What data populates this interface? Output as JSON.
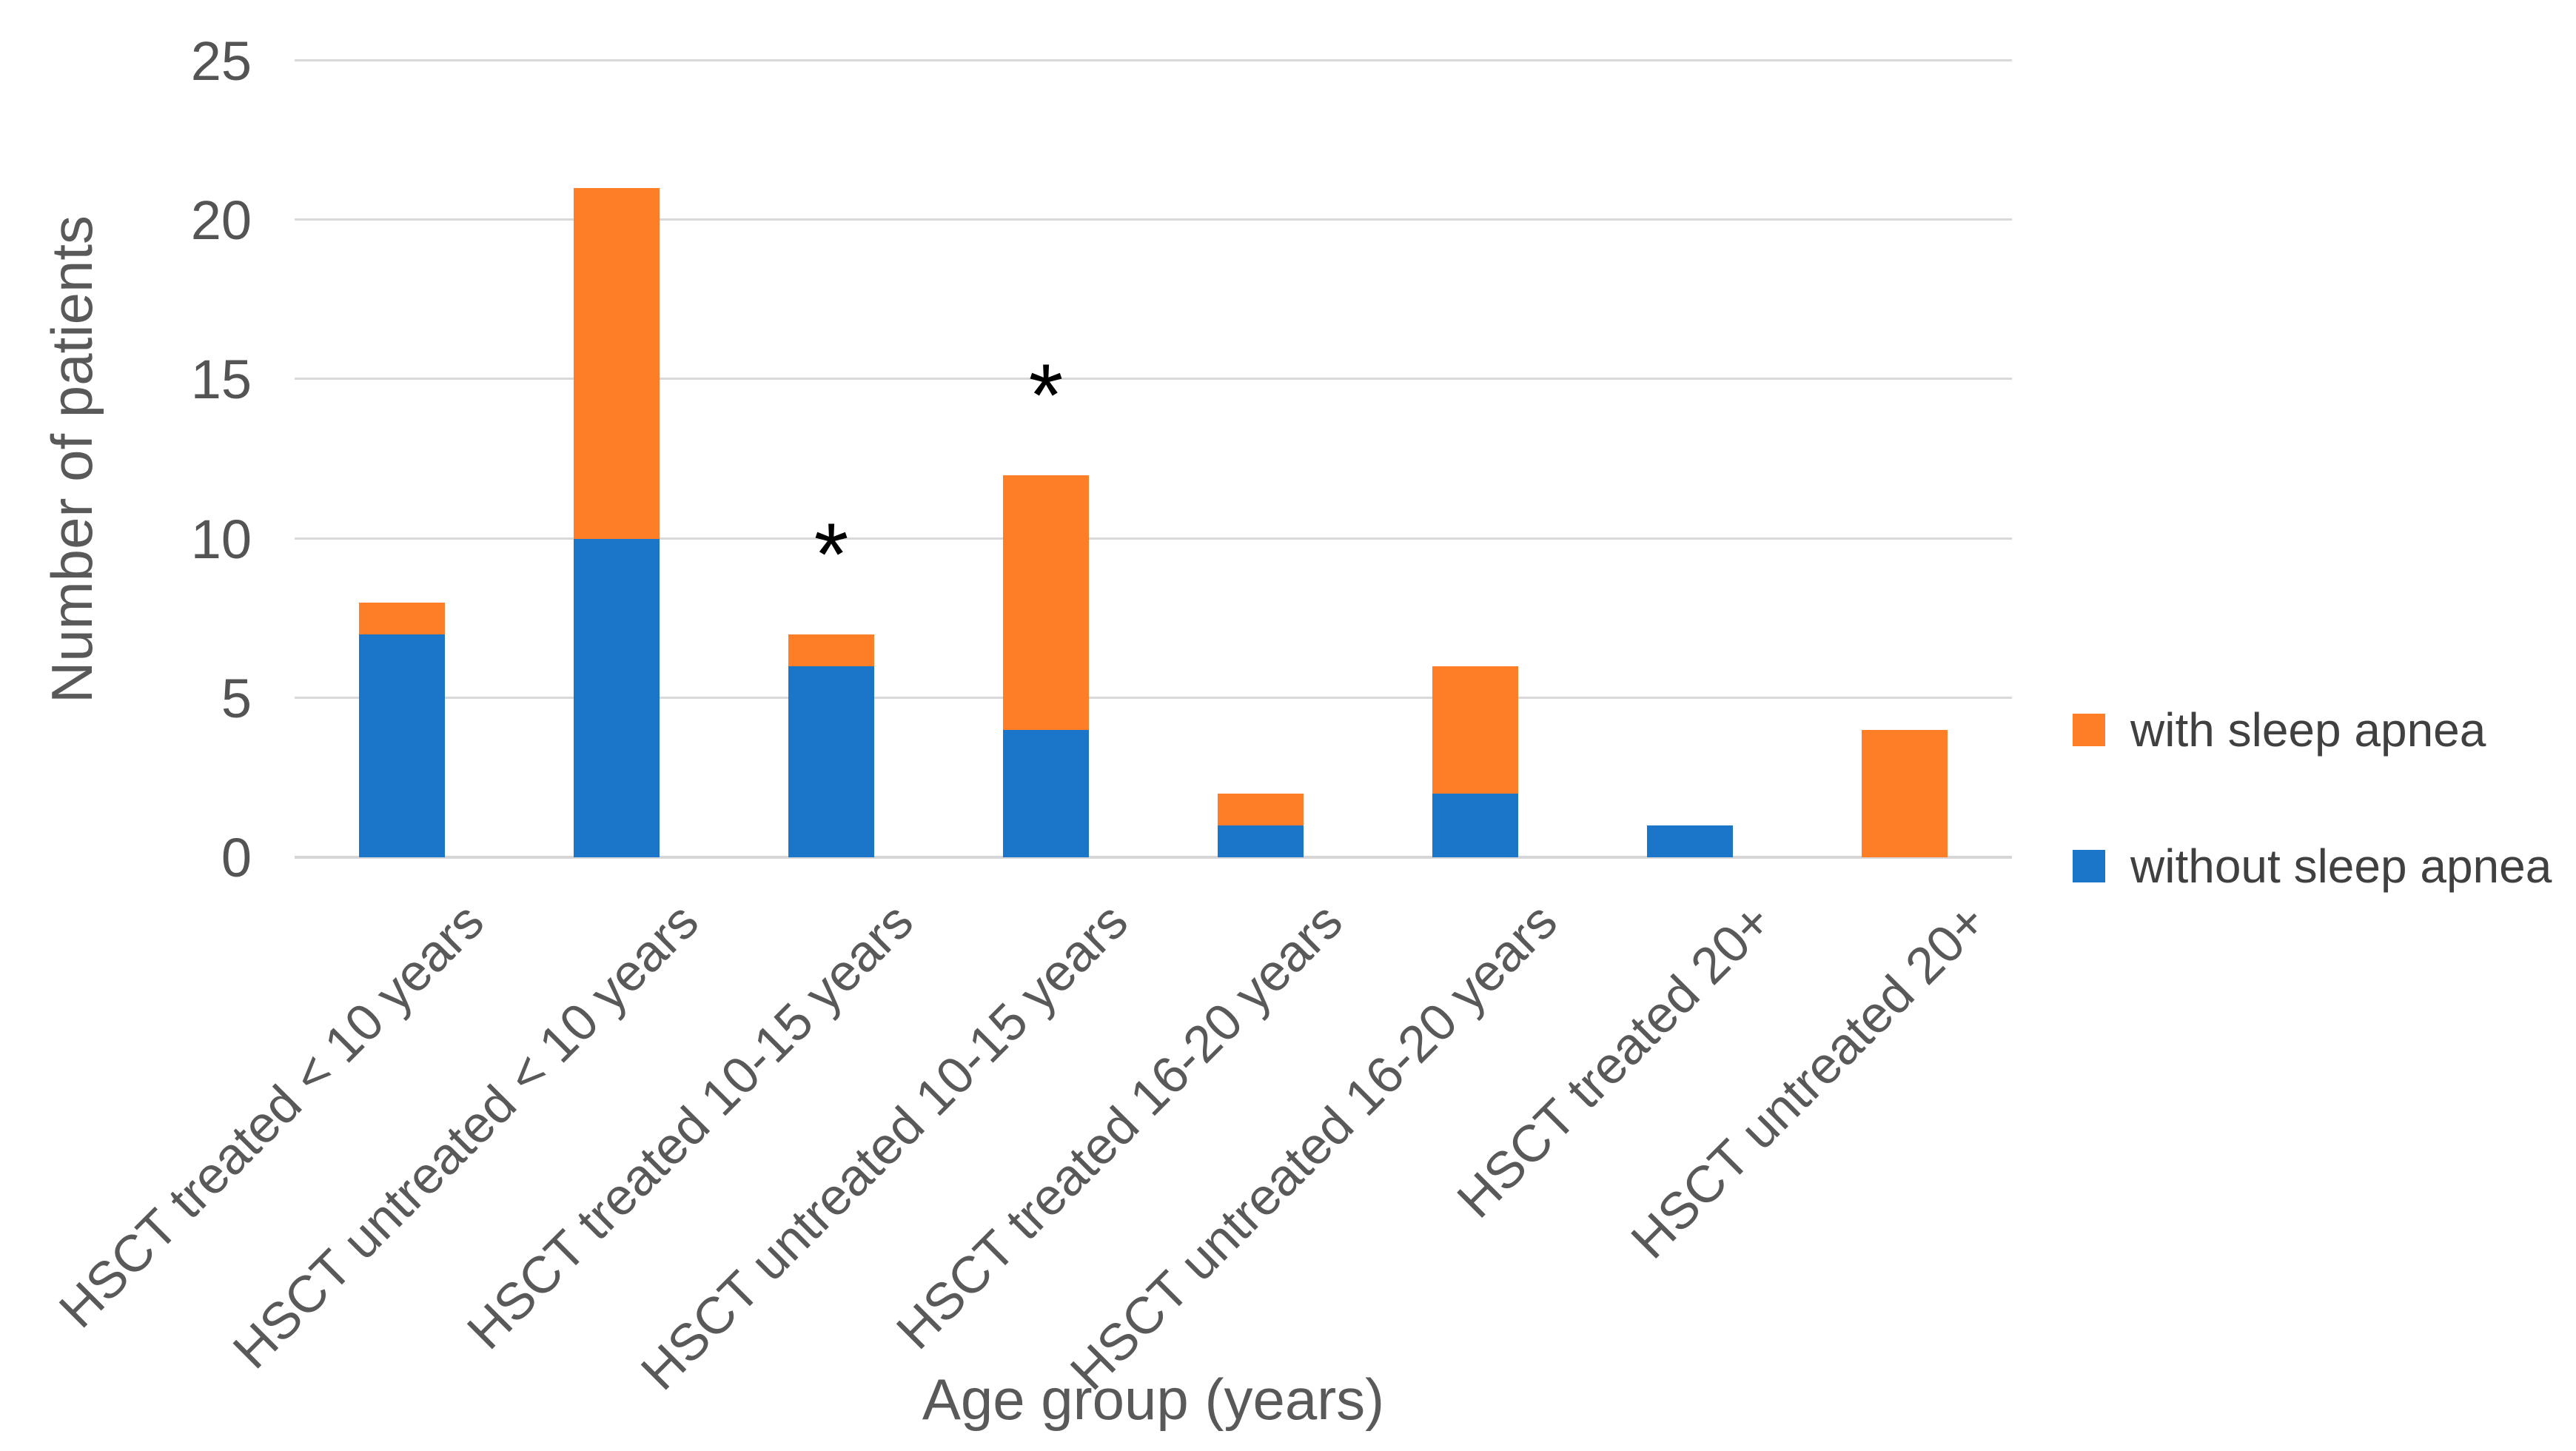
{
  "chart_data": {
    "type": "bar",
    "stacked": true,
    "orientation": "vertical",
    "title": "",
    "xlabel": "Age group (years)",
    "ylabel": "Number of patients",
    "ylim": [
      0,
      25
    ],
    "yticks": [
      0,
      5,
      10,
      15,
      20,
      25
    ],
    "grid": true,
    "categories": [
      "HSCT treated < 10 years",
      "HSCT untreated < 10 years",
      "HSCT treated 10-15 years",
      "HSCT untreated 10-15 years",
      "HSCT treated 16-20 years",
      "HSCT untreated 16-20 years",
      "HSCT treated 20+",
      "HSCT untreated 20+"
    ],
    "series": [
      {
        "name": "without sleep apnea",
        "color": "#1B75C8",
        "values": [
          7,
          10,
          6,
          4,
          1,
          2,
          1,
          0
        ]
      },
      {
        "name": "with sleep apnea",
        "color": "#FD7E26",
        "values": [
          1,
          11,
          1,
          8,
          1,
          4,
          0,
          4
        ]
      }
    ],
    "stack_totals": [
      8,
      21,
      7,
      12,
      2,
      6,
      1,
      4
    ],
    "annotations": [
      {
        "category_index": 2,
        "symbol": "*"
      },
      {
        "category_index": 3,
        "symbol": "*"
      }
    ],
    "legend_position": "right",
    "legend_items": [
      {
        "label": "with sleep apnea",
        "color": "#FD7E26"
      },
      {
        "label": "without sleep apnea",
        "color": "#1B75C8"
      }
    ]
  },
  "style": {
    "background": "#FFFFFF",
    "grid_color": "#D9D9D9",
    "axis_line_color": "#D6D6D6",
    "tick_text_color": "#545454",
    "axis_title_color": "#595959",
    "category_text_color": "#595959",
    "legend_text_color": "#404040",
    "annotation_color": "#000000",
    "bar_blue": "#1B75C8",
    "bar_orange": "#FD7E26"
  }
}
